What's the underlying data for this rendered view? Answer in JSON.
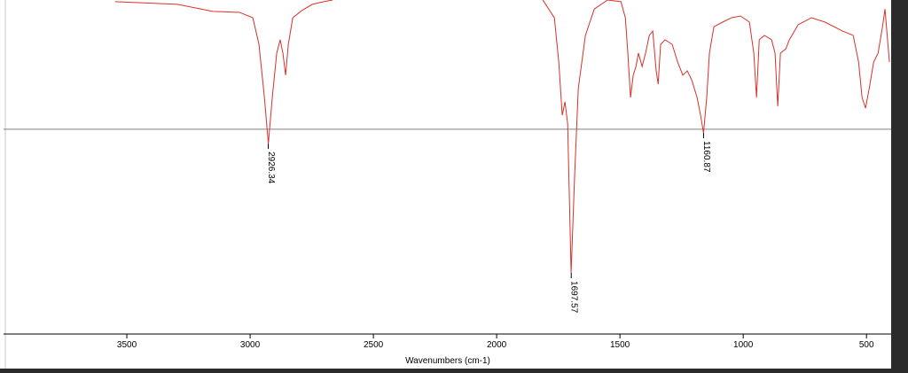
{
  "chart_data": {
    "type": "line",
    "x_label": "Wavenumbers (cm-1)",
    "color": "#d9302a",
    "xlim": [
      4000,
      400
    ],
    "ylim": [
      0,
      100
    ],
    "xticks": [
      3500,
      3000,
      2500,
      2000,
      1500,
      1000,
      500
    ],
    "threshold": 61.3,
    "peaks": [
      2926.34,
      1697.57,
      1160.87
    ],
    "peak_values": [
      57.0,
      18.3,
      60.2
    ],
    "x": [
      3547,
      3295,
      3151,
      3043,
      2989,
      2964,
      2942,
      2926,
      2910,
      2892,
      2878,
      2867,
      2856,
      2845,
      2827,
      2791,
      2748,
      2701,
      2665,
      2400,
      1813,
      1766,
      1748,
      1734,
      1723,
      1712,
      1698,
      1684,
      1669,
      1640,
      1604,
      1550,
      1496,
      1478,
      1468,
      1457,
      1446,
      1435,
      1425,
      1410,
      1396,
      1381,
      1367,
      1353,
      1345,
      1335,
      1317,
      1288,
      1266,
      1245,
      1227,
      1209,
      1187,
      1173,
      1161,
      1148,
      1137,
      1119,
      1083,
      1047,
      1011,
      975,
      957,
      946,
      935,
      914,
      885,
      871,
      860,
      849,
      827,
      813,
      777,
      723,
      669,
      597,
      554,
      532,
      518,
      504,
      489,
      471,
      453,
      435,
      425,
      407
    ],
    "y": [
      99.5,
      98.7,
      96.6,
      96.3,
      94.7,
      86.7,
      70.8,
      57.0,
      70.8,
      84.1,
      88.1,
      84.1,
      77.5,
      86.7,
      94.7,
      96.8,
      98.7,
      99.5,
      100,
      null,
      100,
      94.7,
      81.4,
      65.5,
      69.5,
      62.9,
      18.3,
      46.9,
      73.5,
      89.4,
      97.3,
      100,
      99.5,
      94.7,
      84.1,
      70.8,
      77.5,
      80.1,
      84.1,
      80.1,
      84.1,
      89.4,
      90.7,
      78.8,
      74.8,
      86.7,
      88.1,
      86.7,
      81.4,
      77.5,
      78.8,
      76.1,
      70.8,
      65.5,
      60.2,
      70.8,
      84.1,
      92.0,
      93.4,
      94.7,
      95.2,
      93.4,
      84.1,
      70.8,
      88.1,
      89.4,
      88.1,
      84.1,
      68.2,
      84.1,
      85.4,
      88.1,
      92.6,
      94.7,
      93.4,
      90.7,
      89.4,
      81.4,
      70.8,
      67.6,
      73.5,
      81.4,
      84.1,
      92.0,
      97.3,
      81.4
    ]
  }
}
